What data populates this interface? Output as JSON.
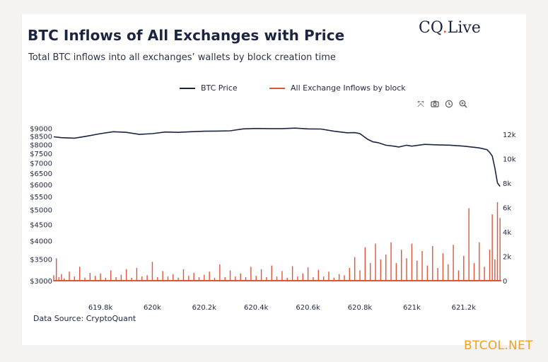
{
  "header": {
    "title": "BTC Inflows of All Exchanges with Price",
    "subtitle": "Total BTC inflows into all exchanges’ wallets by block creation time",
    "brand_text": "CQ",
    "brand_dot": ".",
    "brand_suffix": "Live"
  },
  "footer": {
    "source": "Data Source: CryptoQuant",
    "watermark": "BTCOL.NET"
  },
  "toolbar": {
    "icons": [
      "fullscreen-icon",
      "camera-icon",
      "reset-icon",
      "zoom-icon"
    ]
  },
  "colors": {
    "price": "#1b2440",
    "inflow": "#e0553a"
  },
  "chart_data": {
    "type": "line",
    "title": "BTC Inflows of All Exchanges with Price",
    "subtitle": "Total BTC inflows into all exchanges’ wallets by block creation time",
    "xlabel": "",
    "x_ticks": [
      "619.8k",
      "620k",
      "620.2k",
      "620.4k",
      "620.6k",
      "620.8k",
      "621k",
      "621.2k"
    ],
    "x_tick_values": [
      619800,
      620000,
      620200,
      620400,
      620600,
      620800,
      621000,
      621200
    ],
    "xlim": [
      619620,
      621345
    ],
    "y_left": {
      "ticks": [
        "$9000",
        "$8500",
        "$8000",
        "$7500",
        "$7000",
        "$6500",
        "$6000",
        "$5500",
        "$5000",
        "$4500",
        "$4000",
        "$3500",
        "$3000"
      ],
      "tick_values": [
        9000,
        8500,
        8000,
        7500,
        7000,
        6500,
        6000,
        5500,
        5000,
        4500,
        4000,
        3500,
        3000
      ],
      "scale": "log",
      "range": [
        3000,
        9200
      ]
    },
    "y_right": {
      "ticks": [
        "12k",
        "10k",
        "8k",
        "6k",
        "4k",
        "2k",
        "0"
      ],
      "tick_values": [
        12000,
        10000,
        8000,
        6000,
        4000,
        2000,
        0
      ],
      "range": [
        0,
        12500
      ]
    },
    "legend": [
      "BTC Price",
      "All Exchange Inflows by block"
    ],
    "legend_position": "top-center",
    "grid": false,
    "series": [
      {
        "name": "BTC Price",
        "axis": "left",
        "x": [
          619620,
          619650,
          619700,
          619750,
          619800,
          619850,
          619900,
          619950,
          620000,
          620050,
          620100,
          620150,
          620200,
          620250,
          620300,
          620350,
          620400,
          620450,
          620500,
          620550,
          620600,
          620650,
          620700,
          620750,
          620780,
          620800,
          620830,
          620850,
          620870,
          620900,
          620930,
          620950,
          620980,
          621000,
          621050,
          621100,
          621150,
          621200,
          621230,
          621260,
          621290,
          621300,
          621310,
          621320,
          621330,
          621340
        ],
        "y": [
          8500,
          8450,
          8420,
          8550,
          8700,
          8820,
          8780,
          8650,
          8700,
          8800,
          8780,
          8820,
          8850,
          8860,
          8880,
          9000,
          9030,
          9020,
          9020,
          9050,
          9000,
          8990,
          8850,
          8750,
          8760,
          8700,
          8350,
          8200,
          8150,
          8000,
          7950,
          7900,
          8000,
          7950,
          8050,
          8020,
          8000,
          7950,
          7900,
          7850,
          7750,
          7600,
          7400,
          6800,
          6100,
          5950
        ]
      },
      {
        "name": "All Exchange Inflows by block",
        "axis": "right",
        "x": [
          619620,
          619630,
          619640,
          619650,
          619660,
          619680,
          619700,
          619720,
          619740,
          619760,
          619780,
          619800,
          619820,
          619840,
          619860,
          619880,
          619900,
          619920,
          619940,
          619960,
          619980,
          620000,
          620020,
          620040,
          620060,
          620080,
          620100,
          620120,
          620140,
          620160,
          620180,
          620200,
          620220,
          620240,
          620260,
          620280,
          620300,
          620320,
          620340,
          620360,
          620380,
          620400,
          620420,
          620440,
          620460,
          620480,
          620500,
          620520,
          620540,
          620560,
          620580,
          620600,
          620620,
          620640,
          620660,
          620680,
          620700,
          620720,
          620740,
          620760,
          620780,
          620800,
          620820,
          620840,
          620860,
          620880,
          620900,
          620920,
          620940,
          620960,
          620980,
          621000,
          621020,
          621040,
          621060,
          621080,
          621100,
          621120,
          621140,
          621160,
          621180,
          621200,
          621220,
          621240,
          621260,
          621280,
          621300,
          621310,
          621320,
          621330,
          621340
        ],
        "y": [
          500,
          1900,
          350,
          600,
          250,
          800,
          400,
          1200,
          300,
          700,
          450,
          650,
          300,
          900,
          350,
          550,
          1000,
          300,
          1100,
          400,
          500,
          1600,
          350,
          850,
          400,
          600,
          300,
          1000,
          450,
          700,
          350,
          550,
          800,
          300,
          1400,
          350,
          900,
          400,
          650,
          350,
          1200,
          450,
          1000,
          350,
          1300,
          400,
          850,
          300,
          1250,
          400,
          650,
          1150,
          350,
          950,
          400,
          800,
          300,
          600,
          500,
          1100,
          2000,
          900,
          2800,
          1500,
          3100,
          1800,
          2200,
          3200,
          1500,
          2600,
          1900,
          3100,
          1700,
          2500,
          1300,
          2900,
          1100,
          2300,
          1400,
          3000,
          900,
          2100,
          6000,
          1500,
          3200,
          1200,
          2600,
          5500,
          1800,
          6500,
          5200
        ]
      }
    ]
  }
}
